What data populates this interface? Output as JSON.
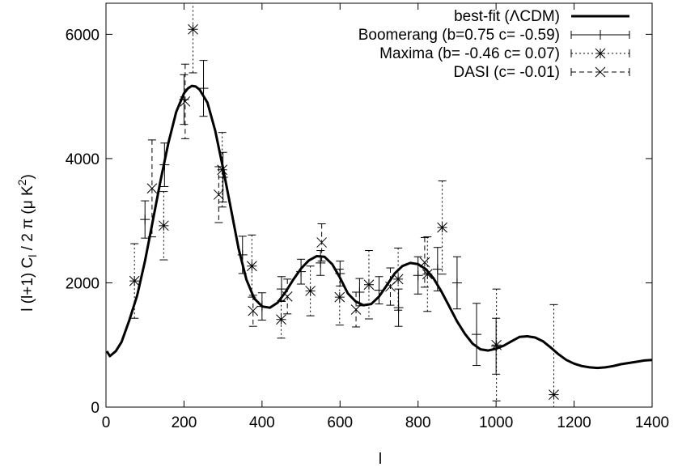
{
  "chart_data": {
    "type": "line",
    "xlabel": "l",
    "ylabel_parts": [
      "l (l+1) C",
      "l",
      " / 2 ",
      "π",
      " (",
      "μ",
      " K",
      "2",
      ")"
    ],
    "xlim": [
      0,
      1400
    ],
    "ylim": [
      0,
      6500
    ],
    "xticks": [
      0,
      200,
      400,
      600,
      800,
      1000,
      1200,
      1400
    ],
    "yticks": [
      0,
      2000,
      4000,
      6000
    ],
    "legend_position": "top-right",
    "series": [
      {
        "name": "best-fit (ΛCDM)",
        "kind": "curve",
        "x": [
          2,
          10,
          25,
          40,
          60,
          80,
          100,
          120,
          140,
          160,
          180,
          200,
          210,
          220,
          230,
          240,
          260,
          280,
          300,
          320,
          340,
          360,
          380,
          400,
          420,
          440,
          460,
          480,
          500,
          520,
          540,
          560,
          580,
          600,
          620,
          640,
          660,
          680,
          700,
          720,
          740,
          760,
          780,
          800,
          820,
          840,
          860,
          880,
          900,
          920,
          940,
          960,
          980,
          1000,
          1020,
          1040,
          1060,
          1080,
          1100,
          1120,
          1140,
          1160,
          1180,
          1200,
          1220,
          1240,
          1260,
          1280,
          1300,
          1320,
          1340,
          1360,
          1380,
          1400
        ],
        "y": [
          900,
          820,
          900,
          1050,
          1400,
          1800,
          2350,
          3000,
          3650,
          4250,
          4750,
          5050,
          5130,
          5170,
          5160,
          5110,
          4900,
          4450,
          3850,
          3200,
          2550,
          2050,
          1750,
          1620,
          1600,
          1680,
          1850,
          2050,
          2230,
          2360,
          2430,
          2420,
          2300,
          2080,
          1830,
          1700,
          1640,
          1660,
          1780,
          1960,
          2150,
          2270,
          2320,
          2300,
          2220,
          2070,
          1860,
          1620,
          1380,
          1180,
          1020,
          930,
          910,
          940,
          990,
          1060,
          1130,
          1140,
          1120,
          1060,
          960,
          850,
          760,
          700,
          660,
          640,
          630,
          640,
          660,
          690,
          710,
          730,
          750,
          760
        ]
      },
      {
        "name": "Boomerang (b=0.75 c= -0.59)",
        "kind": "errorbar",
        "marker": "plus",
        "dash": "",
        "x": [
          100,
          150,
          200,
          250,
          300,
          350,
          400,
          450,
          500,
          550,
          600,
          650,
          700,
          750,
          800,
          850,
          900,
          950,
          1000
        ],
        "y": [
          3020,
          3900,
          4950,
          5130,
          3700,
          2450,
          1620,
          1900,
          2180,
          2320,
          2150,
          1850,
          1880,
          1600,
          2120,
          2220,
          2000,
          1170,
          980
        ],
        "err": [
          300,
          350,
          400,
          450,
          400,
          300,
          220,
          200,
          200,
          200,
          200,
          220,
          220,
          300,
          300,
          350,
          420,
          500,
          450
        ]
      },
      {
        "name": "Maxima (b= -0.46  c=  0.07)",
        "kind": "errorbar",
        "marker": "asterisk",
        "dash": "2,3",
        "x": [
          73,
          148,
          223,
          298,
          374,
          449,
          524,
          599,
          674,
          749,
          824,
          862,
          1001,
          1148
        ],
        "y": [
          2030,
          2920,
          6080,
          3820,
          2270,
          1410,
          1870,
          1770,
          1970,
          2060,
          2140,
          2890,
          1000,
          200
        ],
        "err": [
          600,
          550,
          700,
          600,
          500,
          300,
          400,
          450,
          550,
          500,
          600,
          750,
          900,
          1450
        ]
      },
      {
        "name": "DASI (c= -0.01)",
        "kind": "errorbar",
        "marker": "cross",
        "dash": "6,4",
        "x": [
          118,
          203,
          289,
          377,
          465,
          553,
          641,
          729,
          817
        ],
        "y": [
          3520,
          4920,
          3420,
          1550,
          1780,
          2650,
          1570,
          1940,
          2330
        ],
        "err": [
          780,
          600,
          450,
          250,
          280,
          300,
          280,
          300,
          400
        ]
      }
    ]
  }
}
